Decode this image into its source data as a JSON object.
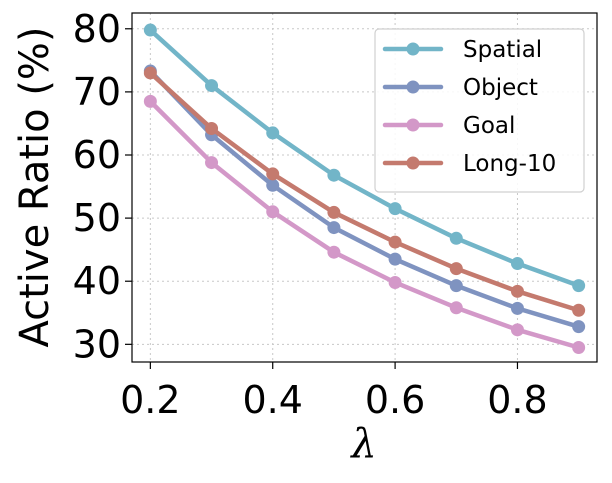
{
  "chart_data": {
    "type": "line",
    "title": "",
    "xlabel": "λ",
    "ylabel": "Active Ratio (%)",
    "x": [
      0.2,
      0.3,
      0.4,
      0.5,
      0.6,
      0.7,
      0.8,
      0.9
    ],
    "xticks": [
      "0.2",
      "0.4",
      "0.6",
      "0.8"
    ],
    "xtick_values": [
      0.2,
      0.4,
      0.6,
      0.8
    ],
    "yticks": [
      "30",
      "40",
      "50",
      "60",
      "70",
      "80"
    ],
    "ytick_values": [
      30,
      40,
      50,
      60,
      70,
      80
    ],
    "xlim": [
      0.17,
      0.93
    ],
    "ylim": [
      27.2,
      82.5
    ],
    "grid": true,
    "legend_position": "top-right",
    "series": [
      {
        "name": "Spatial",
        "color": "#72b5c8",
        "values": [
          79.8,
          71.0,
          63.5,
          56.8,
          51.5,
          46.8,
          42.8,
          39.3
        ]
      },
      {
        "name": "Object",
        "color": "#7f93c0",
        "values": [
          73.3,
          63.2,
          55.2,
          48.5,
          43.5,
          39.3,
          35.7,
          32.8
        ]
      },
      {
        "name": "Goal",
        "color": "#d398c8",
        "values": [
          68.5,
          58.8,
          51.0,
          44.6,
          39.8,
          35.8,
          32.3,
          29.5
        ]
      },
      {
        "name": "Long-10",
        "color": "#c47a6e",
        "values": [
          73.0,
          64.2,
          57.0,
          50.9,
          46.2,
          42.0,
          38.4,
          35.4
        ]
      }
    ]
  }
}
